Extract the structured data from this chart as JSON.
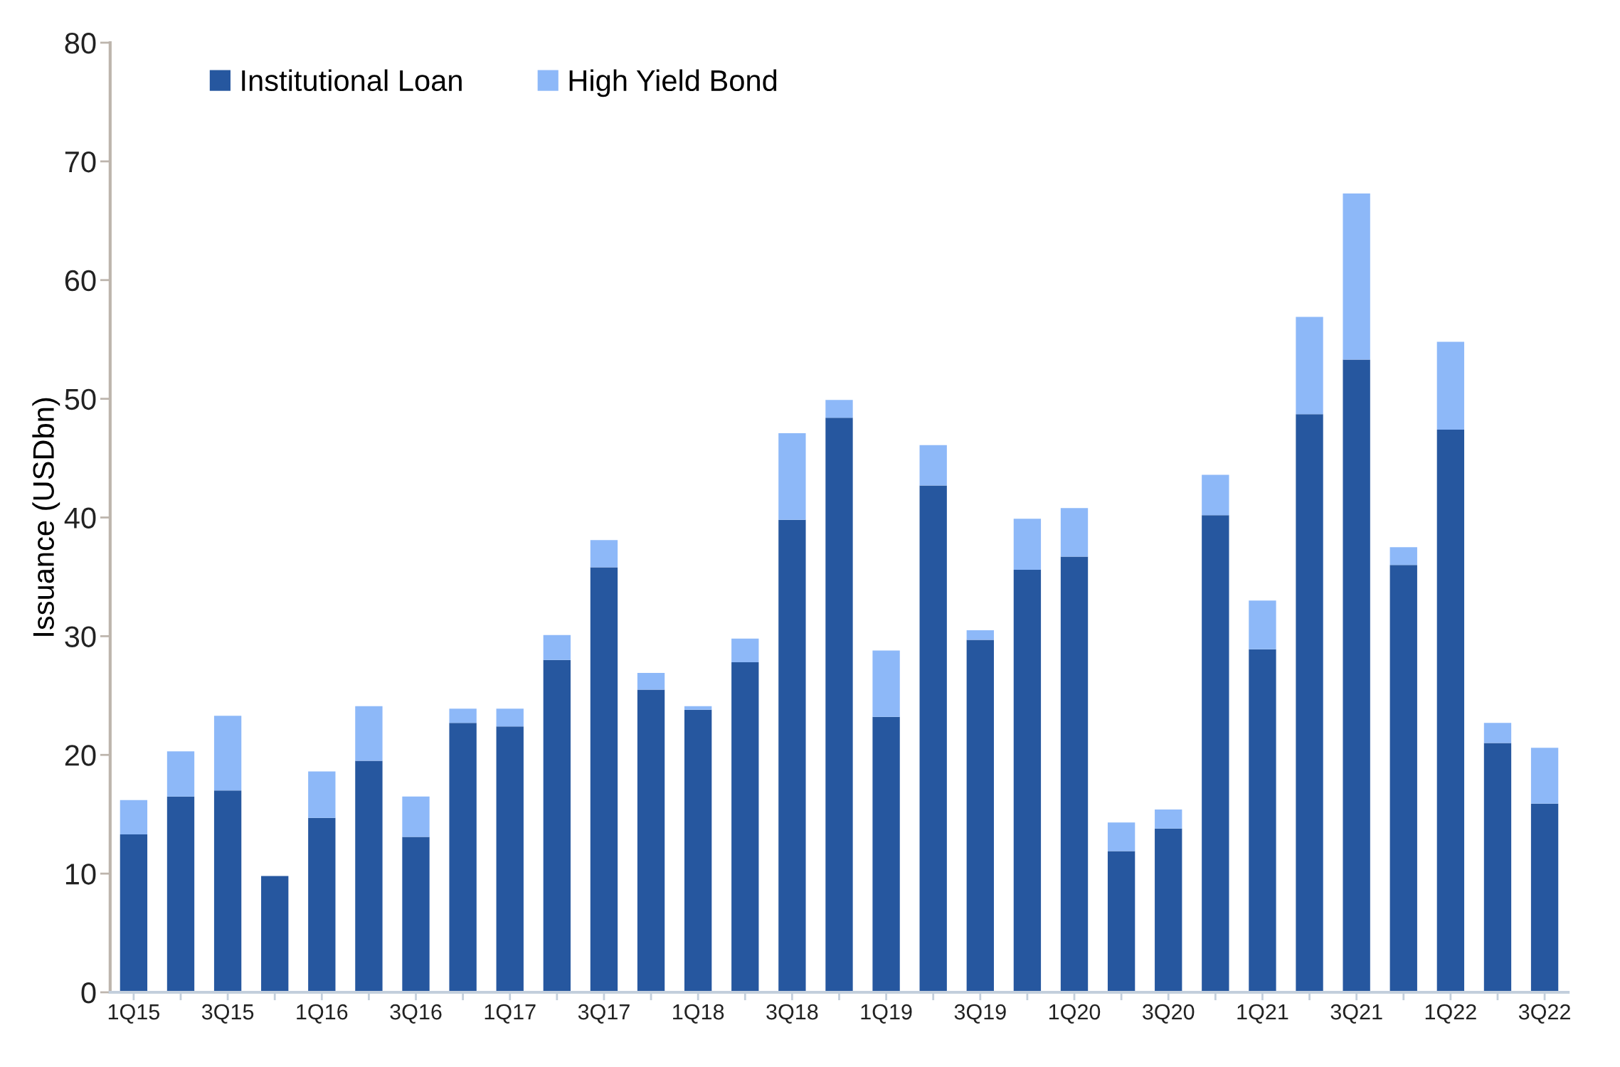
{
  "chart_data": {
    "type": "bar",
    "stacked": true,
    "ylabel": "Issuance (USDbn)",
    "categories": [
      "1Q15",
      null,
      "3Q15",
      null,
      "1Q16",
      null,
      "3Q16",
      null,
      "1Q17",
      null,
      "3Q17",
      null,
      "1Q18",
      null,
      "3Q18",
      null,
      "1Q19",
      null,
      "3Q19",
      null,
      "1Q20",
      null,
      "3Q20",
      null,
      "1Q21",
      null,
      "3Q21",
      null,
      "1Q22",
      null,
      "3Q22"
    ],
    "series": [
      {
        "name": "Institutional Loan",
        "color": "#26579f",
        "values": [
          13.3,
          16.5,
          17.0,
          9.8,
          14.7,
          19.5,
          13.1,
          22.7,
          22.4,
          28.0,
          35.8,
          25.5,
          23.8,
          27.8,
          39.8,
          48.4,
          23.2,
          42.7,
          29.7,
          35.6,
          36.7,
          11.9,
          13.8,
          40.2,
          28.9,
          48.7,
          53.3,
          36.0,
          47.4,
          21.0,
          15.9
        ]
      },
      {
        "name": "High Yield Bond",
        "color": "#8db8f8",
        "values": [
          2.9,
          3.8,
          6.3,
          0,
          3.9,
          4.6,
          3.4,
          1.2,
          1.5,
          2.1,
          2.3,
          1.4,
          0.3,
          2.0,
          7.3,
          1.5,
          5.6,
          3.4,
          0.8,
          4.3,
          4.1,
          2.4,
          1.6,
          3.4,
          4.1,
          8.2,
          14.0,
          1.5,
          7.4,
          1.7,
          4.7
        ]
      }
    ],
    "ylim": [
      0,
      80
    ],
    "yticks": [
      0,
      10,
      20,
      30,
      40,
      50,
      60,
      70,
      80
    ],
    "grid": false,
    "legend": "top left"
  }
}
